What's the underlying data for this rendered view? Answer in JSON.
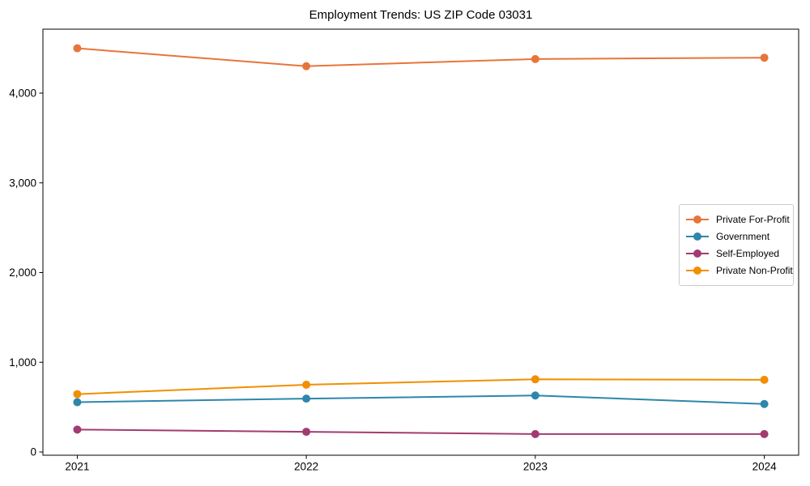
{
  "title": "Employment Trends: US ZIP Code 03031",
  "chart_data": {
    "type": "line",
    "title": "Employment Trends: US ZIP Code 03031",
    "x": [
      2021,
      2022,
      2023,
      2024
    ],
    "x_tick_labels": [
      "2021",
      "2022",
      "2023",
      "2024"
    ],
    "series": [
      {
        "name": "Private For-Profit",
        "color": "#E8743B",
        "values": [
          4500,
          4300,
          4380,
          4395
        ]
      },
      {
        "name": "Government",
        "color": "#2E86AB",
        "values": [
          555,
          595,
          630,
          535
        ]
      },
      {
        "name": "Self-Employed",
        "color": "#A23B72",
        "values": [
          250,
          225,
          200,
          200
        ]
      },
      {
        "name": "Private Non-Profit",
        "color": "#F18F01",
        "values": [
          645,
          750,
          810,
          805
        ]
      }
    ],
    "y_ticks": [
      0,
      1000,
      2000,
      3000,
      4000
    ],
    "y_tick_labels": [
      "0",
      "1,000",
      "2,000",
      "3,000",
      "4,000"
    ],
    "xlim": [
      2020.85,
      2024.15
    ],
    "ylim": [
      -36,
      4713
    ],
    "xlabel": "",
    "ylabel": "",
    "grid": false,
    "legend_position": "center-right",
    "legend_frame": true,
    "marker": "circle",
    "line_width": 2,
    "marker_radius": 5,
    "axis_color": "#000000",
    "background": "#ffffff"
  }
}
